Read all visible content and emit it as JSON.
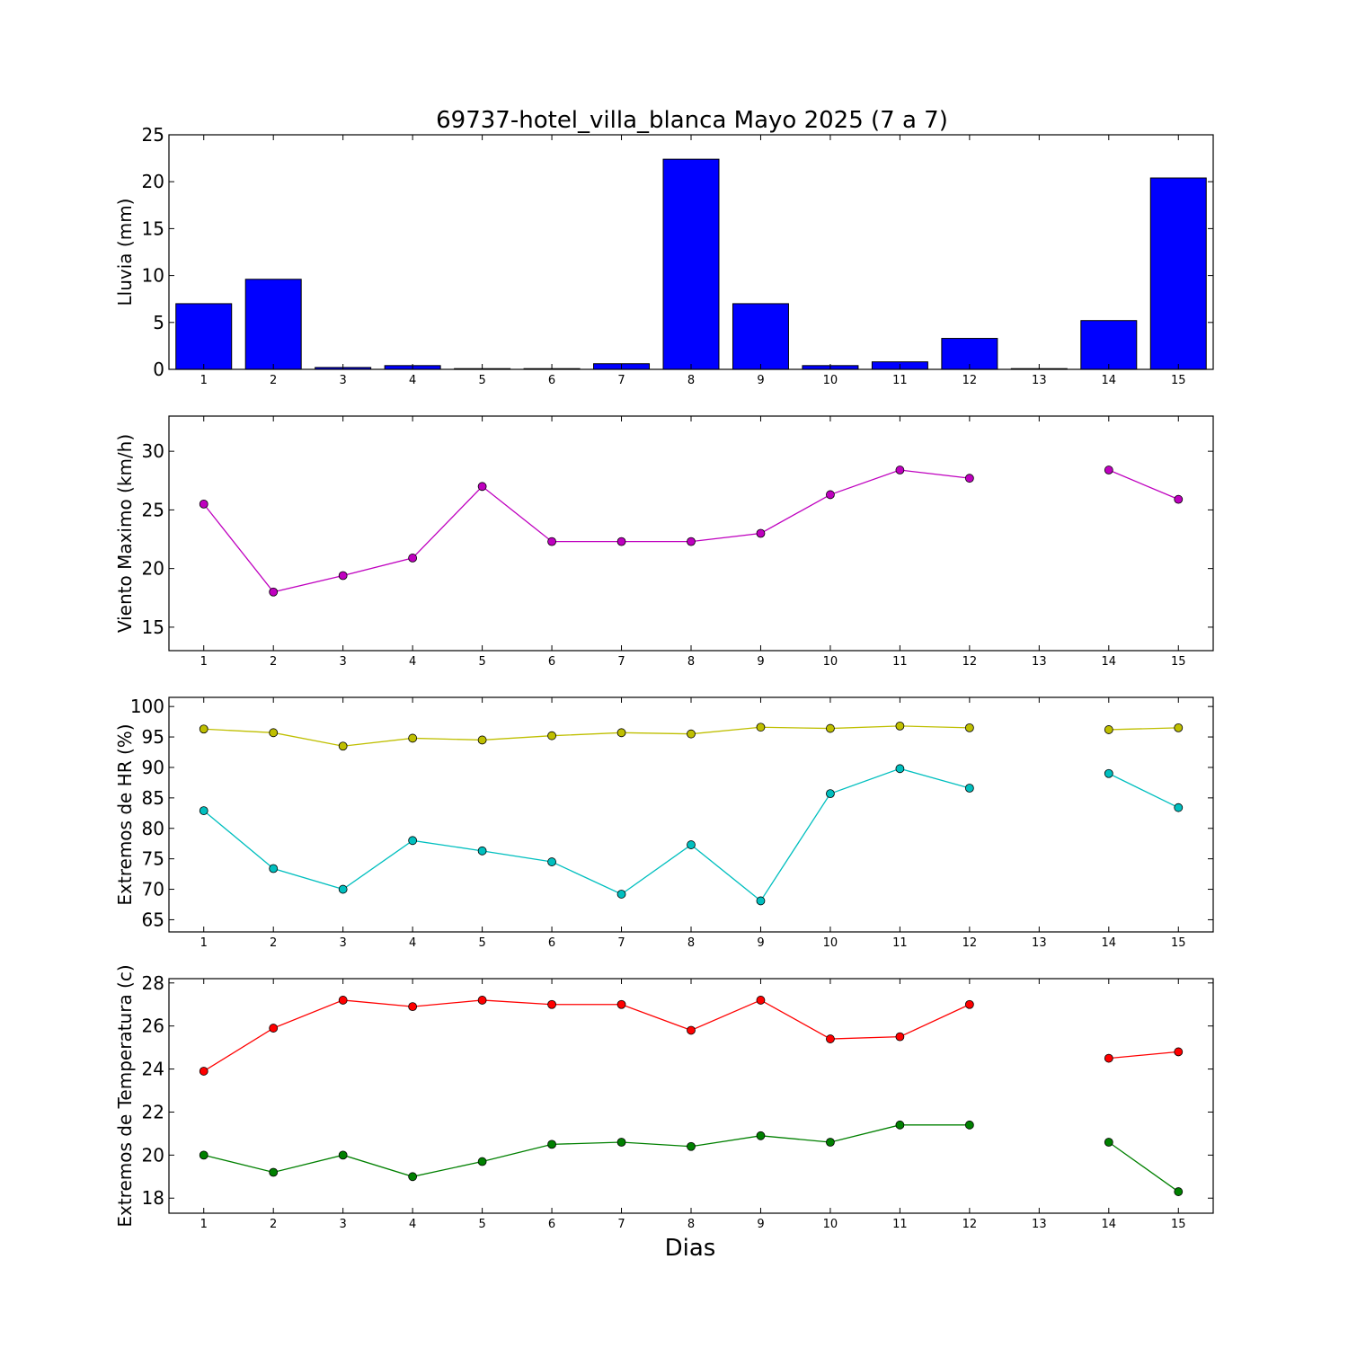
{
  "title": "69737-hotel_villa_blanca Mayo 2025  (7 a 7)",
  "xlabel": "Dias",
  "chart_data": [
    {
      "type": "bar",
      "name": "lluvia",
      "ylabel": "Lluvia (mm)",
      "ylim": [
        0,
        25
      ],
      "yticks": [
        0,
        5,
        10,
        15,
        20,
        25
      ],
      "xlim": [
        0.5,
        15.5
      ],
      "xticks": [
        1,
        2,
        3,
        4,
        5,
        6,
        7,
        8,
        9,
        10,
        11,
        12,
        13,
        14,
        15
      ],
      "categories": [
        1,
        2,
        3,
        4,
        5,
        6,
        7,
        8,
        9,
        10,
        11,
        12,
        13,
        14,
        15
      ],
      "values": [
        7.0,
        9.6,
        0.2,
        0.4,
        0.0,
        0.0,
        0.6,
        22.4,
        7.0,
        0.4,
        0.8,
        3.3,
        0.0,
        5.2,
        20.4
      ],
      "bar_width": 0.8,
      "color": "#0000ff"
    },
    {
      "type": "line",
      "name": "viento",
      "ylabel": "Viento Maximo (km/h)",
      "ylim": [
        13,
        33
      ],
      "yticks": [
        15,
        20,
        25,
        30
      ],
      "xlim": [
        0.5,
        15.5
      ],
      "xticks": [
        1,
        2,
        3,
        4,
        5,
        6,
        7,
        8,
        9,
        10,
        11,
        12,
        13,
        14,
        15
      ],
      "x": [
        1,
        2,
        3,
        4,
        5,
        6,
        7,
        8,
        9,
        10,
        11,
        12,
        13,
        14,
        15
      ],
      "series": [
        {
          "color": "#bf00bf",
          "values": [
            25.5,
            18.0,
            19.4,
            20.9,
            27.0,
            22.3,
            22.3,
            22.3,
            23.0,
            26.3,
            28.4,
            27.7,
            null,
            28.4,
            25.9
          ]
        }
      ]
    },
    {
      "type": "line",
      "name": "humedad",
      "ylabel": "Extremos de HR (%)",
      "ylim": [
        63,
        101.5
      ],
      "yticks": [
        65,
        70,
        75,
        80,
        85,
        90,
        95,
        100
      ],
      "xlim": [
        0.5,
        15.5
      ],
      "xticks": [
        1,
        2,
        3,
        4,
        5,
        6,
        7,
        8,
        9,
        10,
        11,
        12,
        13,
        14,
        15
      ],
      "x": [
        1,
        2,
        3,
        4,
        5,
        6,
        7,
        8,
        9,
        10,
        11,
        12,
        13,
        14,
        15
      ],
      "series": [
        {
          "color": "#bfbf00",
          "values": [
            96.3,
            95.7,
            93.5,
            94.8,
            94.5,
            95.2,
            95.7,
            95.5,
            96.6,
            96.4,
            96.8,
            96.5,
            null,
            96.2,
            96.5
          ]
        },
        {
          "color": "#00bfbf",
          "values": [
            82.9,
            73.4,
            70.0,
            78.0,
            76.3,
            74.5,
            69.2,
            77.3,
            68.1,
            85.7,
            89.8,
            86.6,
            null,
            89.0,
            83.4
          ]
        }
      ]
    },
    {
      "type": "line",
      "name": "temperatura",
      "ylabel": "Extremos de Temperatura (c)",
      "ylim": [
        17.3,
        28.2
      ],
      "yticks": [
        18,
        20,
        22,
        24,
        26,
        28
      ],
      "xlim": [
        0.5,
        15.5
      ],
      "xticks": [
        1,
        2,
        3,
        4,
        5,
        6,
        7,
        8,
        9,
        10,
        11,
        12,
        13,
        14,
        15
      ],
      "x": [
        1,
        2,
        3,
        4,
        5,
        6,
        7,
        8,
        9,
        10,
        11,
        12,
        13,
        14,
        15
      ],
      "series": [
        {
          "color": "#ff0000",
          "values": [
            23.9,
            25.9,
            27.2,
            26.9,
            27.2,
            27.0,
            27.0,
            25.8,
            27.2,
            25.4,
            25.5,
            27.0,
            null,
            24.5,
            24.8
          ]
        },
        {
          "color": "#008000",
          "values": [
            20.0,
            19.2,
            20.0,
            19.0,
            19.7,
            20.5,
            20.6,
            20.4,
            20.9,
            20.6,
            21.4,
            21.4,
            null,
            20.6,
            18.3
          ]
        }
      ]
    }
  ]
}
